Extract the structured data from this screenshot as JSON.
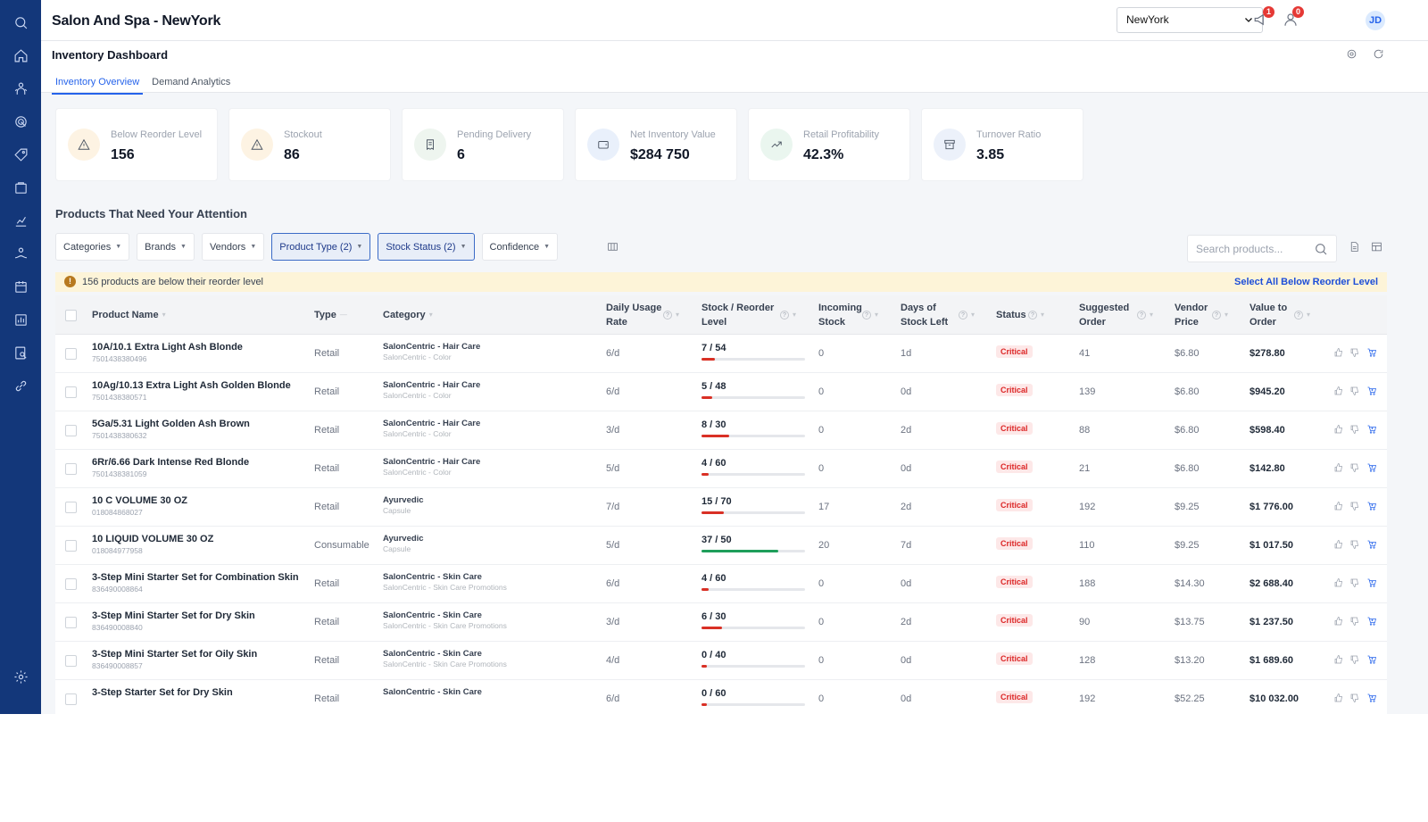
{
  "app": {
    "title": "Salon And Spa - NewYork"
  },
  "location": {
    "selected": "NewYork"
  },
  "notifications": {
    "announce_count": "1",
    "user_count": "0"
  },
  "user": {
    "initials": "JD"
  },
  "page": {
    "title": "Inventory Dashboard"
  },
  "tabs": [
    {
      "label": "Inventory Overview",
      "active": true
    },
    {
      "label": "Demand Analytics",
      "active": false
    }
  ],
  "kpis": [
    {
      "label": "Below Reorder Level",
      "value": "156",
      "icon": "alert-triangle-icon",
      "bg": "#fdf3e3"
    },
    {
      "label": "Stockout",
      "value": "86",
      "icon": "alert-triangle-icon",
      "bg": "#fdf3e3"
    },
    {
      "label": "Pending Delivery",
      "value": "6",
      "icon": "receipt-icon",
      "bg": "#eef5ef"
    },
    {
      "label": "Net Inventory Value",
      "value": "$284 750",
      "icon": "wallet-icon",
      "bg": "#e9f0fb"
    },
    {
      "label": "Retail Profitability",
      "value": "42.3%",
      "icon": "trend-up-icon",
      "bg": "#eaf6ef"
    },
    {
      "label": "Turnover Ratio",
      "value": "3.85",
      "icon": "archive-icon",
      "bg": "#ecf1fa"
    }
  ],
  "section": {
    "title": "Products That Need Your Attention"
  },
  "filters": [
    {
      "label": "Categories",
      "active": false
    },
    {
      "label": "Brands",
      "active": false
    },
    {
      "label": "Vendors",
      "active": false
    },
    {
      "label": "Product Type (2)",
      "active": true
    },
    {
      "label": "Stock Status (2)",
      "active": true
    },
    {
      "label": "Confidence",
      "active": false
    }
  ],
  "search": {
    "placeholder": "Search products..."
  },
  "alert": {
    "text": "156 products are below their reorder level",
    "action": "Select All Below Reorder Level"
  },
  "columns": {
    "product_name": "Product Name",
    "type": "Type",
    "category": "Category",
    "daily_usage": "Daily Usage Rate",
    "stock_reorder": "Stock / Reorder Level",
    "incoming": "Incoming Stock",
    "days_left": "Days of Stock Left",
    "status": "Status",
    "suggested": "Suggested Order",
    "vendor_price": "Vendor Price",
    "value_to_order": "Value to Order"
  },
  "colors": {
    "bar_red": "#d93025",
    "bar_green": "#1e9e5a",
    "accent": "#2563eb",
    "sidebar": "#13377a"
  },
  "rows": [
    {
      "name": "10A/10.1 Extra Light Ash Blonde",
      "sku": "7501438380496",
      "type": "Retail",
      "cat": "SalonCentric - Hair Care",
      "subcat": "SalonCentric - Color",
      "usage": "6/d",
      "stock": 7,
      "reorder": 54,
      "stock_label": "7 / 54",
      "incoming": "0",
      "days": "1d",
      "status": "Critical",
      "suggested": "41",
      "price": "$6.80",
      "value": "$278.80"
    },
    {
      "name": "10Ag/10.13 Extra Light Ash Golden Blonde",
      "sku": "7501438380571",
      "type": "Retail",
      "cat": "SalonCentric - Hair Care",
      "subcat": "SalonCentric - Color",
      "usage": "6/d",
      "stock": 5,
      "reorder": 48,
      "stock_label": "5 / 48",
      "incoming": "0",
      "days": "0d",
      "status": "Critical",
      "suggested": "139",
      "price": "$6.80",
      "value": "$945.20"
    },
    {
      "name": "5Ga/5.31 Light Golden Ash Brown",
      "sku": "7501438380632",
      "type": "Retail",
      "cat": "SalonCentric - Hair Care",
      "subcat": "SalonCentric - Color",
      "usage": "3/d",
      "stock": 8,
      "reorder": 30,
      "stock_label": "8 / 30",
      "incoming": "0",
      "days": "2d",
      "status": "Critical",
      "suggested": "88",
      "price": "$6.80",
      "value": "$598.40"
    },
    {
      "name": "6Rr/6.66 Dark Intense Red Blonde",
      "sku": "7501438381059",
      "type": "Retail",
      "cat": "SalonCentric - Hair Care",
      "subcat": "SalonCentric - Color",
      "usage": "5/d",
      "stock": 4,
      "reorder": 60,
      "stock_label": "4 / 60",
      "incoming": "0",
      "days": "0d",
      "status": "Critical",
      "suggested": "21",
      "price": "$6.80",
      "value": "$142.80"
    },
    {
      "name": "10 C VOLUME 30 OZ",
      "sku": "018084868027",
      "type": "Retail",
      "cat": "Ayurvedic",
      "subcat": "Capsule",
      "usage": "7/d",
      "stock": 15,
      "reorder": 70,
      "stock_label": "15 / 70",
      "incoming": "17",
      "days": "2d",
      "status": "Critical",
      "suggested": "192",
      "price": "$9.25",
      "value": "$1 776.00"
    },
    {
      "name": "10 LIQUID VOLUME 30 OZ",
      "sku": "018084977958",
      "type": "Consumable",
      "cat": "Ayurvedic",
      "subcat": "Capsule",
      "usage": "5/d",
      "stock": 37,
      "reorder": 50,
      "stock_label": "37 / 50",
      "incoming": "20",
      "days": "7d",
      "status": "Critical",
      "suggested": "110",
      "price": "$9.25",
      "value": "$1 017.50"
    },
    {
      "name": "3-Step Mini Starter Set for Combination Skin",
      "sku": "836490008864",
      "type": "Retail",
      "cat": "SalonCentric - Skin Care",
      "subcat": "SalonCentric - Skin Care Promotions",
      "usage": "6/d",
      "stock": 4,
      "reorder": 60,
      "stock_label": "4 / 60",
      "incoming": "0",
      "days": "0d",
      "status": "Critical",
      "suggested": "188",
      "price": "$14.30",
      "value": "$2 688.40"
    },
    {
      "name": "3-Step Mini Starter Set for Dry Skin",
      "sku": "836490008840",
      "type": "Retail",
      "cat": "SalonCentric - Skin Care",
      "subcat": "SalonCentric - Skin Care Promotions",
      "usage": "3/d",
      "stock": 6,
      "reorder": 30,
      "stock_label": "6 / 30",
      "incoming": "0",
      "days": "2d",
      "status": "Critical",
      "suggested": "90",
      "price": "$13.75",
      "value": "$1 237.50"
    },
    {
      "name": "3-Step Mini Starter Set for Oily Skin",
      "sku": "836490008857",
      "type": "Retail",
      "cat": "SalonCentric - Skin Care",
      "subcat": "SalonCentric - Skin Care Promotions",
      "usage": "4/d",
      "stock": 0,
      "reorder": 40,
      "stock_label": "0 / 40",
      "incoming": "0",
      "days": "0d",
      "status": "Critical",
      "suggested": "128",
      "price": "$13.20",
      "value": "$1 689.60"
    },
    {
      "name": "3-Step Starter Set for Dry Skin",
      "sku": "",
      "type": "Retail",
      "cat": "SalonCentric - Skin Care",
      "subcat": "",
      "usage": "6/d",
      "stock": 0,
      "reorder": 60,
      "stock_label": "0 / 60",
      "incoming": "0",
      "days": "0d",
      "status": "Critical",
      "suggested": "192",
      "price": "$52.25",
      "value": "$10 032.00"
    }
  ]
}
